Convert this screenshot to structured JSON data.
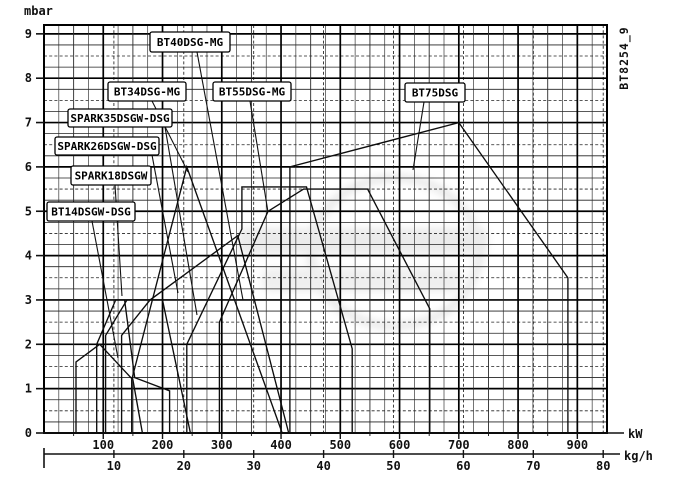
{
  "figure_code": "BT8254_9",
  "units": {
    "pressure": "mbar",
    "power": "kW",
    "flow": "kg/h"
  },
  "watermark": {
    "visible": true,
    "shape": "faint-circular-logo"
  },
  "chart_data": {
    "type": "line",
    "title": "",
    "subtitle": "",
    "description": "Burner working fields: combustion-chamber back pressure (mbar) vs burner output (kW / kg/h light oil)",
    "y_axis": {
      "label": "mbar",
      "ticks": [
        0,
        1,
        2,
        3,
        4,
        5,
        6,
        7,
        8,
        9
      ],
      "range": [
        0,
        9.2
      ],
      "grid": true
    },
    "x_axis_kw": {
      "label": "kW",
      "ticks": [
        100,
        200,
        300,
        400,
        500,
        600,
        700,
        800,
        900
      ],
      "range": [
        0,
        950
      ],
      "grid": true
    },
    "x_axis_kgh": {
      "label": "kg/h",
      "ticks": [
        10,
        20,
        30,
        40,
        50,
        60,
        70,
        80
      ],
      "range": [
        0,
        83
      ],
      "kw_per_kgh": 11.8
    },
    "grid": {
      "minor_x_kw": 25,
      "mid_x_kw": 50,
      "major_x_kw": 100,
      "minor_y_mbar": 0.25,
      "dashed_y_mbar": 0.5,
      "major_y_mbar": 1,
      "dashed_x_kgh": 10
    },
    "legend_position": "labels-on-chart",
    "series": [
      {
        "name": "BT14DSGW-DSG",
        "points_kw_mbar": [
          [
            54,
            0
          ],
          [
            54,
            1.6
          ],
          [
            94,
            2.0
          ],
          [
            150,
            1.2
          ],
          [
            166,
            0
          ]
        ],
        "label_box": [
          47,
          202,
          88,
          19
        ],
        "leader": [
          [
            92,
            221
          ],
          [
            118,
            358
          ]
        ]
      },
      {
        "name": "SPARK18DSGW",
        "points_kw_mbar": [
          [
            89,
            0
          ],
          [
            89,
            2.0
          ],
          [
            121,
            3.0
          ],
          [
            136,
            3.0
          ],
          [
            153,
            1.25
          ],
          [
            212,
            0.95
          ],
          [
            212,
            0
          ]
        ],
        "label_box": [
          71,
          166,
          80,
          19
        ],
        "leader": [
          [
            115,
            185
          ],
          [
            122,
            296
          ]
        ]
      },
      {
        "name": "SPARK26DSGW-DSG",
        "points_kw_mbar": [
          [
            104,
            0
          ],
          [
            104,
            2.2
          ],
          [
            140,
            3.0
          ],
          [
            200,
            3.0
          ],
          [
            247,
            0
          ]
        ],
        "label_box": [
          55,
          137,
          104,
          18
        ],
        "leader": [
          [
            152,
            155
          ],
          [
            178,
            293
          ]
        ]
      },
      {
        "name": "SPARK35DSGW-DSG",
        "points_kw_mbar": [
          [
            131,
            0
          ],
          [
            131,
            2.2
          ],
          [
            179,
            3.0
          ],
          [
            327,
            4.45
          ],
          [
            413,
            0
          ]
        ],
        "label_box": [
          68,
          109,
          104,
          18
        ],
        "leader": [
          [
            165,
            127
          ],
          [
            197,
            315
          ]
        ]
      },
      {
        "name": "BT34DSG-MG",
        "points_kw_mbar": [
          [
            148,
            0
          ],
          [
            148,
            1.2
          ],
          [
            241,
            6.0
          ],
          [
            402,
            0
          ]
        ],
        "label_box": [
          108,
          82,
          78,
          19
        ],
        "leader": [
          [
            152,
            101
          ],
          [
            188,
            172
          ]
        ]
      },
      {
        "name": "BT40DSG-MG",
        "points_kw_mbar": [
          [
            241,
            0
          ],
          [
            241,
            2.0
          ],
          [
            334,
            4.6
          ],
          [
            334,
            5.55
          ],
          [
            443,
            5.55
          ],
          [
            520,
            1.9
          ],
          [
            520,
            0
          ]
        ],
        "label_box": [
          150,
          32,
          80,
          20
        ],
        "leader": [
          [
            197,
            52
          ],
          [
            243,
            300
          ]
        ]
      },
      {
        "name": "BT55DSG-MG",
        "points_kw_mbar": [
          [
            296,
            0
          ],
          [
            296,
            2.5
          ],
          [
            378,
            5.0
          ],
          [
            438,
            5.5
          ],
          [
            546,
            5.5
          ],
          [
            651,
            2.8
          ],
          [
            651,
            0
          ]
        ],
        "label_box": [
          213,
          82,
          78,
          19
        ],
        "leader": [
          [
            250,
            101
          ],
          [
            268,
            212
          ]
        ]
      },
      {
        "name": "BT75DSG",
        "points_kw_mbar": [
          [
            415,
            0
          ],
          [
            415,
            6.0
          ],
          [
            700,
            7.0
          ],
          [
            884,
            3.5
          ],
          [
            884,
            0
          ]
        ],
        "label_box": [
          405,
          83,
          60,
          19
        ],
        "leader": [
          [
            424,
            102
          ],
          [
            413,
            170
          ]
        ]
      }
    ]
  }
}
